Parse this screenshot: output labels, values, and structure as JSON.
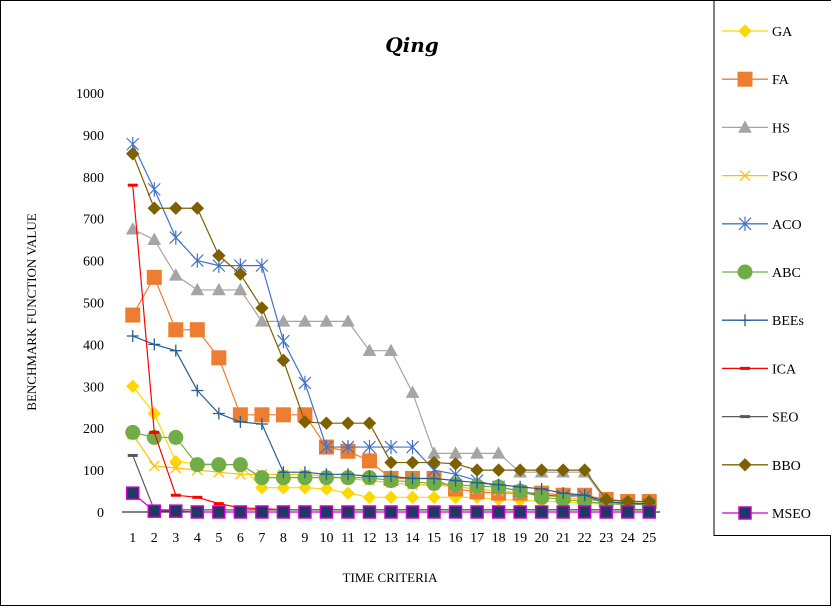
{
  "chart_data": {
    "type": "line",
    "title": "Qing",
    "xlabel": "TIME CRITERIA",
    "ylabel": "BENCHMARK FUNCTION VALUE",
    "ylim": [
      0,
      1000
    ],
    "yticks": [
      0,
      100,
      200,
      300,
      400,
      500,
      600,
      700,
      800,
      900,
      1000
    ],
    "categories": [
      "1",
      "2",
      "3",
      "4",
      "5",
      "6",
      "7",
      "8",
      "9",
      "10",
      "11",
      "12",
      "13",
      "14",
      "15",
      "16",
      "17",
      "18",
      "19",
      "20",
      "21",
      "22",
      "23",
      "24",
      "25"
    ],
    "grid": false,
    "legend_position": "right",
    "series": [
      {
        "name": "GA",
        "color": "#FFD700",
        "marker": "diamond",
        "values": [
          300,
          235,
          120,
          115,
          115,
          112,
          58,
          58,
          58,
          55,
          45,
          35,
          35,
          35,
          35,
          35,
          35,
          30,
          28,
          25,
          25,
          20,
          20,
          18,
          18
        ]
      },
      {
        "name": "FA",
        "color": "#ED7D31",
        "marker": "square",
        "values": [
          470,
          560,
          435,
          435,
          368,
          232,
          232,
          232,
          232,
          155,
          145,
          122,
          80,
          80,
          80,
          55,
          48,
          45,
          45,
          45,
          40,
          40,
          30,
          25,
          25
        ]
      },
      {
        "name": "HS",
        "color": "#A5A5A5",
        "marker": "triangle",
        "values": [
          675,
          650,
          565,
          530,
          530,
          530,
          455,
          455,
          455,
          455,
          455,
          385,
          385,
          285,
          140,
          140,
          140,
          140,
          95,
          95,
          95,
          95,
          25,
          22,
          20
        ]
      },
      {
        "name": "PSO",
        "color": "#FFC000",
        "marker": "x",
        "values": [
          185,
          110,
          105,
          100,
          95,
          90,
          90,
          90,
          90,
          85,
          80,
          75,
          70,
          65,
          65,
          60,
          55,
          50,
          45,
          40,
          35,
          30,
          25,
          20,
          20
        ]
      },
      {
        "name": "ACO",
        "color": "#4472C4",
        "marker": "star",
        "values": [
          878,
          770,
          655,
          600,
          588,
          588,
          588,
          408,
          308,
          155,
          155,
          155,
          155,
          155,
          100,
          90,
          75,
          60,
          50,
          40,
          38,
          38,
          20,
          18,
          18
        ]
      },
      {
        "name": "ABC",
        "color": "#70AD47",
        "marker": "circle",
        "values": [
          190,
          178,
          178,
          113,
          113,
          113,
          82,
          82,
          82,
          82,
          82,
          82,
          75,
          72,
          68,
          65,
          62,
          60,
          50,
          35,
          30,
          25,
          20,
          18,
          18
        ]
      },
      {
        "name": "BEEs",
        "color": "#255E91",
        "marker": "plus",
        "values": [
          420,
          400,
          385,
          290,
          235,
          215,
          210,
          95,
          95,
          90,
          90,
          85,
          85,
          80,
          80,
          75,
          70,
          65,
          60,
          55,
          45,
          40,
          25,
          20,
          20
        ]
      },
      {
        "name": "ICA",
        "color": "#FF0000",
        "marker": "dash",
        "values": [
          780,
          190,
          40,
          35,
          20,
          10,
          8,
          5,
          5,
          5,
          5,
          5,
          5,
          5,
          5,
          5,
          5,
          5,
          5,
          5,
          5,
          5,
          5,
          5,
          5
        ]
      },
      {
        "name": "SEO",
        "color": "#595959",
        "marker": "dash",
        "values": [
          135,
          5,
          5,
          5,
          5,
          5,
          5,
          5,
          5,
          5,
          5,
          5,
          5,
          5,
          5,
          5,
          5,
          5,
          5,
          5,
          5,
          5,
          5,
          5,
          5
        ]
      },
      {
        "name": "BBO",
        "color": "#7F6000",
        "marker": "diamond",
        "values": [
          855,
          725,
          725,
          725,
          612,
          568,
          487,
          362,
          215,
          212,
          212,
          212,
          118,
          118,
          118,
          115,
          100,
          100,
          100,
          100,
          100,
          100,
          30,
          25,
          25
        ]
      },
      {
        "name": "MSEO",
        "color": "#CC00CC",
        "marker": "square-navy",
        "values": [
          45,
          2,
          2,
          0,
          0,
          0,
          0,
          0,
          0,
          0,
          0,
          0,
          0,
          0,
          0,
          0,
          0,
          0,
          0,
          0,
          0,
          0,
          0,
          0,
          0
        ]
      }
    ]
  }
}
